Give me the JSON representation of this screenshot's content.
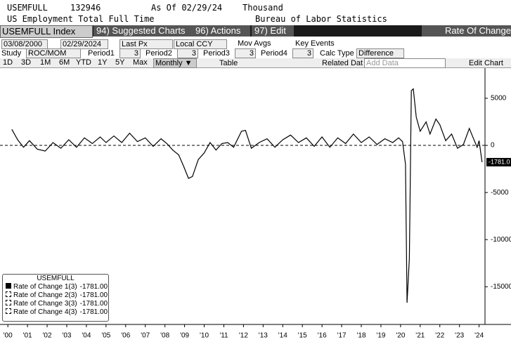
{
  "header": {
    "ticker": "USEMFULL",
    "last": "132946",
    "as_of": "As Of 02/29/24",
    "unit": "Thousand",
    "name": "US Employment Total Full Time",
    "source": "Bureau of Labor Statistics"
  },
  "toolbar": {
    "security": "USEMFULL Index",
    "suggested": "94) Suggested Charts",
    "actions": "96) Actions",
    "edit": "97) Edit",
    "study_title": "Rate Of Change"
  },
  "range_row": {
    "start": "03/08/2000",
    "end": "02/29/2024",
    "field": "Last Px",
    "currency": "Local CCY",
    "mov_avgs": "Mov Avgs",
    "key_events": "Key Events"
  },
  "study_row": {
    "label": "Study",
    "study": "ROC/MOM",
    "p1": "Period1",
    "v1": "3",
    "p2": "Period2",
    "v2": "3",
    "p3": "Period3",
    "v3": "3",
    "p4": "Period4",
    "v4": "3",
    "calc": "Calc Type",
    "calc_value": "Difference"
  },
  "period_row": {
    "buttons": [
      "1D",
      "3D",
      "1M",
      "6M",
      "YTD",
      "1Y",
      "5Y",
      "Max"
    ],
    "frequency": "Monthly ▼",
    "table": "Table",
    "related": "Related Dat",
    "add": "Add Data",
    "edit_chart": "Edit Chart"
  },
  "chart_data": {
    "type": "line",
    "x": [
      2000.2,
      2000.5,
      2000.8,
      2001.1,
      2001.5,
      2001.9,
      2002.3,
      2002.7,
      2003.1,
      2003.5,
      2003.9,
      2004.3,
      2004.7,
      2005.0,
      2005.4,
      2005.8,
      2006.2,
      2006.6,
      2007.0,
      2007.4,
      2007.8,
      2008.1,
      2008.4,
      2008.7,
      2008.95,
      2009.2,
      2009.4,
      2009.7,
      2010.0,
      2010.3,
      2010.6,
      2010.9,
      2011.2,
      2011.5,
      2011.9,
      2012.1,
      2012.4,
      2012.8,
      2013.2,
      2013.6,
      2014.0,
      2014.4,
      2014.8,
      2015.2,
      2015.6,
      2016.0,
      2016.4,
      2016.8,
      2017.2,
      2017.6,
      2018.0,
      2018.4,
      2018.8,
      2019.2,
      2019.6,
      2019.9,
      2020.1,
      2020.25,
      2020.33,
      2020.45,
      2020.55,
      2020.65,
      2020.8,
      2021.0,
      2021.3,
      2021.5,
      2021.8,
      2022.0,
      2022.3,
      2022.6,
      2022.9,
      2023.2,
      2023.5,
      2023.7,
      2023.9,
      2024.0,
      2024.1,
      2024.15
    ],
    "series": [
      {
        "name": "Rate of Change 1(3)",
        "color": "#000000",
        "values": [
          1700,
          600,
          -200,
          500,
          -400,
          -600,
          300,
          -300,
          600,
          -200,
          800,
          200,
          900,
          300,
          1000,
          300,
          1300,
          400,
          800,
          -100,
          700,
          200,
          -500,
          -1000,
          -2200,
          -3500,
          -3300,
          -1500,
          -800,
          300,
          -500,
          200,
          300,
          -200,
          1500,
          1600,
          -300,
          300,
          700,
          -200,
          600,
          1100,
          300,
          800,
          -100,
          900,
          -200,
          800,
          200,
          1200,
          300,
          900,
          100,
          700,
          300,
          800,
          400,
          -2000,
          -16700,
          -12000,
          5800,
          6000,
          3000,
          1500,
          2500,
          1200,
          2800,
          2200,
          500,
          1200,
          -300,
          100,
          1800,
          800,
          -200,
          500,
          -1000,
          -1781
        ]
      }
    ],
    "last_label": "-1781.0",
    "xlim": [
      1999.6,
      2024.3
    ],
    "xticks": [
      {
        "value": 2000,
        "label": "'00"
      },
      {
        "value": 2001,
        "label": "'01"
      },
      {
        "value": 2002,
        "label": "'02"
      },
      {
        "value": 2003,
        "label": "'03"
      },
      {
        "value": 2004,
        "label": "'04"
      },
      {
        "value": 2005,
        "label": "'05"
      },
      {
        "value": 2006,
        "label": "'06"
      },
      {
        "value": 2007,
        "label": "'07"
      },
      {
        "value": 2008,
        "label": "'08"
      },
      {
        "value": 2009,
        "label": "'09"
      },
      {
        "value": 2010,
        "label": "'10"
      },
      {
        "value": 2011,
        "label": "'11"
      },
      {
        "value": 2012,
        "label": "'12"
      },
      {
        "value": 2013,
        "label": "'13"
      },
      {
        "value": 2014,
        "label": "'14"
      },
      {
        "value": 2015,
        "label": "'15"
      },
      {
        "value": 2016,
        "label": "'16"
      },
      {
        "value": 2017,
        "label": "'17"
      },
      {
        "value": 2018,
        "label": "'18"
      },
      {
        "value": 2019,
        "label": "'19"
      },
      {
        "value": 2020,
        "label": "'20"
      },
      {
        "value": 2021,
        "label": "'21"
      },
      {
        "value": 2022,
        "label": "'22"
      },
      {
        "value": 2023,
        "label": "'23"
      },
      {
        "value": 2024,
        "label": "'24"
      }
    ],
    "ylim": [
      -19000,
      8200
    ],
    "yticks": [
      5000,
      0,
      -5000,
      -10000,
      -15000
    ],
    "legend": {
      "title": "USEMFULL",
      "value": "-1781.00",
      "extra": [
        "Rate of Change 2(3)",
        "Rate of Change 3(3)",
        "Rate of Change 4(3)"
      ]
    }
  }
}
